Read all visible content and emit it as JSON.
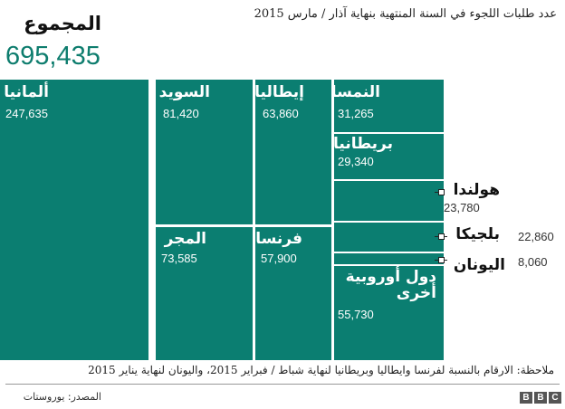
{
  "header": {
    "title": "عدد طلبات اللجوء في السنة المنتهية بنهاية آذار / مارس 2015",
    "total_label": "المجموع",
    "total_value": "695,435"
  },
  "chart_data": {
    "type": "treemap",
    "title": "عدد طلبات اللجوء في السنة المنتهية بنهاية آذار / مارس 2015",
    "total": 695435,
    "items": [
      {
        "id": "germany",
        "name": "ألمانيا",
        "value": 247635,
        "label": "247,635"
      },
      {
        "id": "sweden",
        "name": "السويد",
        "value": 81420,
        "label": "81,420"
      },
      {
        "id": "italy",
        "name": "إيطاليا",
        "value": 63860,
        "label": "63,860"
      },
      {
        "id": "austria",
        "name": "النمسا",
        "value": 31265,
        "label": "31,265"
      },
      {
        "id": "uk",
        "name": "بريطانيا",
        "value": 29340,
        "label": "29,340"
      },
      {
        "id": "netherlands",
        "name": "هولندا",
        "value": 23780,
        "label": "23,780"
      },
      {
        "id": "belgium",
        "name": "بلجيكا",
        "value": 22860,
        "label": "22,860"
      },
      {
        "id": "greece",
        "name": "اليونان",
        "value": 8060,
        "label": "8,060"
      },
      {
        "id": "hungary",
        "name": "المجر",
        "value": 73585,
        "label": "73,585"
      },
      {
        "id": "france",
        "name": "فرنسا",
        "value": 57900,
        "label": "57,900"
      },
      {
        "id": "other",
        "name": "دول أوروبية أخرى",
        "value": 55730,
        "label": "55,730"
      }
    ]
  },
  "note": "ملاحظة: الارقام بالنسبة لفرنسا وايطاليا وبريطانيا لنهاية شباط / فبراير 2015، واليونان لنهاية يناير 2015",
  "source": "المصدر: يوروستات",
  "logo": [
    "B",
    "B",
    "C"
  ]
}
